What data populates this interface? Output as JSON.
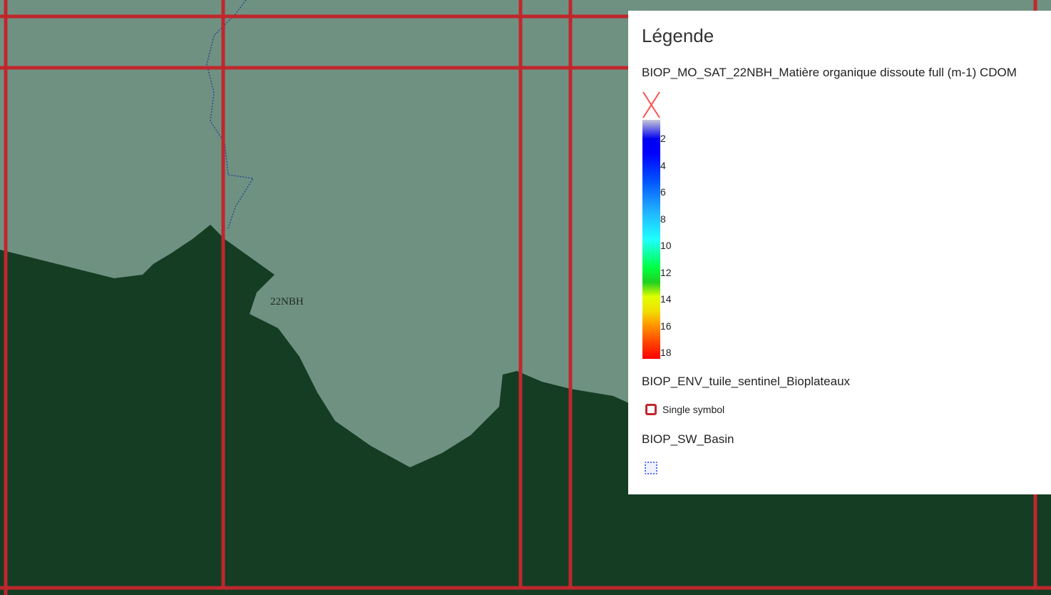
{
  "map": {
    "tile_label": "22NBH",
    "colors": {
      "grid": "#c0272d",
      "forest": "#123a22",
      "water": "#7a9a8c"
    }
  },
  "legend": {
    "title": "Légende",
    "layers": [
      {
        "name": "BIOP_MO_SAT_22NBH_Matière organique dissoute full (m-1) CDOM",
        "nodata_icon": "red-x-icon",
        "ramp_ticks": [
          "2",
          "4",
          "6",
          "8",
          "10",
          "12",
          "14",
          "16",
          "18"
        ],
        "ramp_colors": [
          "#0000ff",
          "#0050ff",
          "#20b0ff",
          "#20ffff",
          "#00ff40",
          "#e0ff00",
          "#ffa000",
          "#ff5000",
          "#ff0000"
        ]
      },
      {
        "name": "BIOP_ENV_tuile_sentinel_Bioplateaux",
        "symbol_label": "Single symbol",
        "symbol_color": "#c0272d"
      },
      {
        "name": "BIOP_SW_Basin",
        "symbol_color": "#5a6cf0"
      }
    ]
  }
}
